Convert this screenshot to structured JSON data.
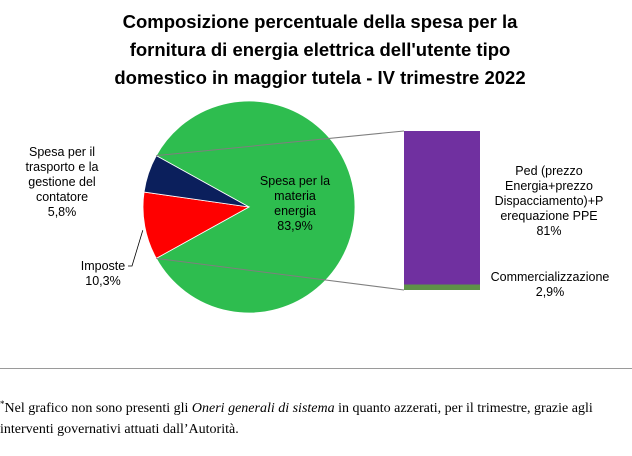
{
  "chart_data": {
    "type": "pie",
    "title": "Composizione percentuale della spesa per la\nfornitura di energia elettrica dell'utente tipo\ndomestico in maggior tutela - IV trimestre 2022",
    "slices": [
      {
        "label_lines": [
          "Spesa per la",
          "materia",
          "energia"
        ],
        "value": 83.9,
        "value_label": "83,9%",
        "color": "#2ebd4f"
      },
      {
        "label_lines": [
          "Imposte"
        ],
        "value": 10.3,
        "value_label": "10,3%",
        "color": "#ff0000"
      },
      {
        "label_lines": [
          "Spesa per il",
          "trasporto e la",
          "gestione del",
          "contatore"
        ],
        "value": 5.8,
        "value_label": "5,8%",
        "color": "#0b1f5c"
      }
    ],
    "breakdown": {
      "of_slice": "Spesa per la materia energia",
      "type": "stacked-bar",
      "segments": [
        {
          "label_lines": [
            "Ped (prezzo",
            "Energia+prezzo",
            "Dispacciamento)+P",
            "erequazione PPE"
          ],
          "value": 81,
          "value_label": "81%",
          "color": "#7030a0"
        },
        {
          "label_lines": [
            "Commercializzazione"
          ],
          "value": 2.9,
          "value_label": "2,9%",
          "color": "#5e9148"
        }
      ]
    }
  },
  "footnote": {
    "marker": "*",
    "before": "Nel grafico non sono presenti gli ",
    "italic": "Oneri generali di sistema",
    "after": " in quanto azzerati, per il trimestre, grazie agli interventi governativi attuati dall’Autorità."
  }
}
